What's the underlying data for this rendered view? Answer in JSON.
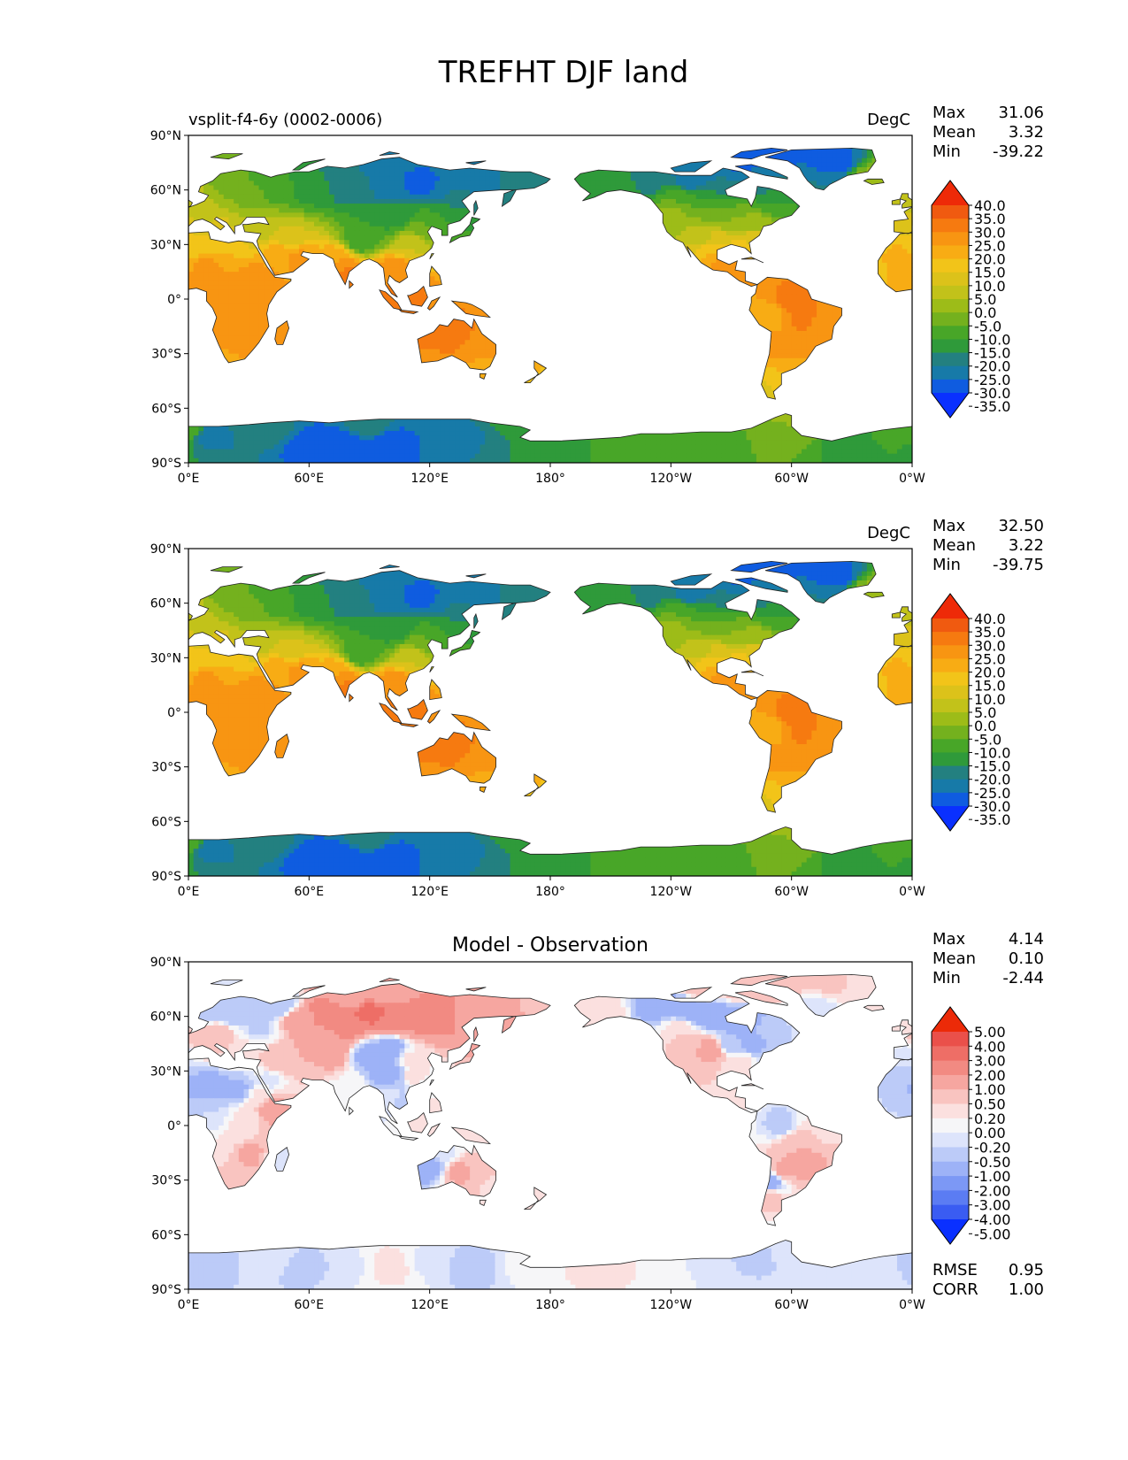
{
  "title": "TREFHT DJF land",
  "lon_ticks": [
    "0°E",
    "60°E",
    "120°E",
    "180°",
    "120°W",
    "60°W",
    "0°W"
  ],
  "lat_ticks": [
    "90°N",
    "60°N",
    "30°N",
    "0°",
    "30°S",
    "60°S",
    "90°S"
  ],
  "stat_labels": {
    "max": "Max",
    "mean": "Mean",
    "min": "Min",
    "rmse": "RMSE",
    "corr": "CORR"
  },
  "colors": {
    "abs_scale": [
      "#0a30ff",
      "#0f5ce0",
      "#177aa8",
      "#238080",
      "#2f9a3a",
      "#48a628",
      "#74b11e",
      "#9dbc18",
      "#c2c21a",
      "#dcc21a",
      "#f2c419",
      "#f8ac14",
      "#f89512",
      "#f67a10",
      "#f05a10",
      "#ee2a08"
    ],
    "diff_scale": [
      "#0a30ff",
      "#3a5cf2",
      "#5b7cf3",
      "#7c98f5",
      "#9db2f7",
      "#bccbf8",
      "#dde4fb",
      "#f6f6f8",
      "#fbe0df",
      "#f9c4c0",
      "#f6a6a0",
      "#f28a82",
      "#ee6e66",
      "#ea504a",
      "#ec2a08"
    ],
    "coastline": "#222222",
    "ocean": "#ffffff"
  },
  "panels": [
    {
      "name": "test",
      "left_title": "vsplit-f4-6y (0002-0006)",
      "center_title": "",
      "units": "DegC",
      "stats": {
        "max": "31.06",
        "mean": "3.32",
        "min": "-39.22"
      },
      "colorbar_levels": [
        "40.0",
        "35.0",
        "30.0",
        "25.0",
        "20.0",
        "15.0",
        "10.0",
        "5.0",
        "0.0",
        "-5.0",
        "-10.0",
        "-15.0",
        "-20.0",
        "-25.0",
        "-30.0",
        "-35.0"
      ]
    },
    {
      "name": "reference",
      "left_title": "",
      "center_title": "",
      "units": "DegC",
      "stats": {
        "max": "32.50",
        "mean": "3.22",
        "min": "-39.75"
      },
      "colorbar_levels": [
        "40.0",
        "35.0",
        "30.0",
        "25.0",
        "20.0",
        "15.0",
        "10.0",
        "5.0",
        "0.0",
        "-5.0",
        "-10.0",
        "-15.0",
        "-20.0",
        "-25.0",
        "-30.0",
        "-35.0"
      ]
    },
    {
      "name": "difference",
      "left_title": "",
      "center_title": "Model - Observation",
      "units": "",
      "stats": {
        "max": "4.14",
        "mean": "0.10",
        "min": "-2.44"
      },
      "extra_stats": {
        "rmse": "0.95",
        "corr": "1.00"
      },
      "colorbar_levels": [
        "5.00",
        "4.00",
        "3.00",
        "2.00",
        "1.00",
        "0.50",
        "0.20",
        "0.00",
        "-0.20",
        "-0.50",
        "-1.00",
        "-2.00",
        "-3.00",
        "-4.00",
        "-5.00"
      ]
    }
  ]
}
